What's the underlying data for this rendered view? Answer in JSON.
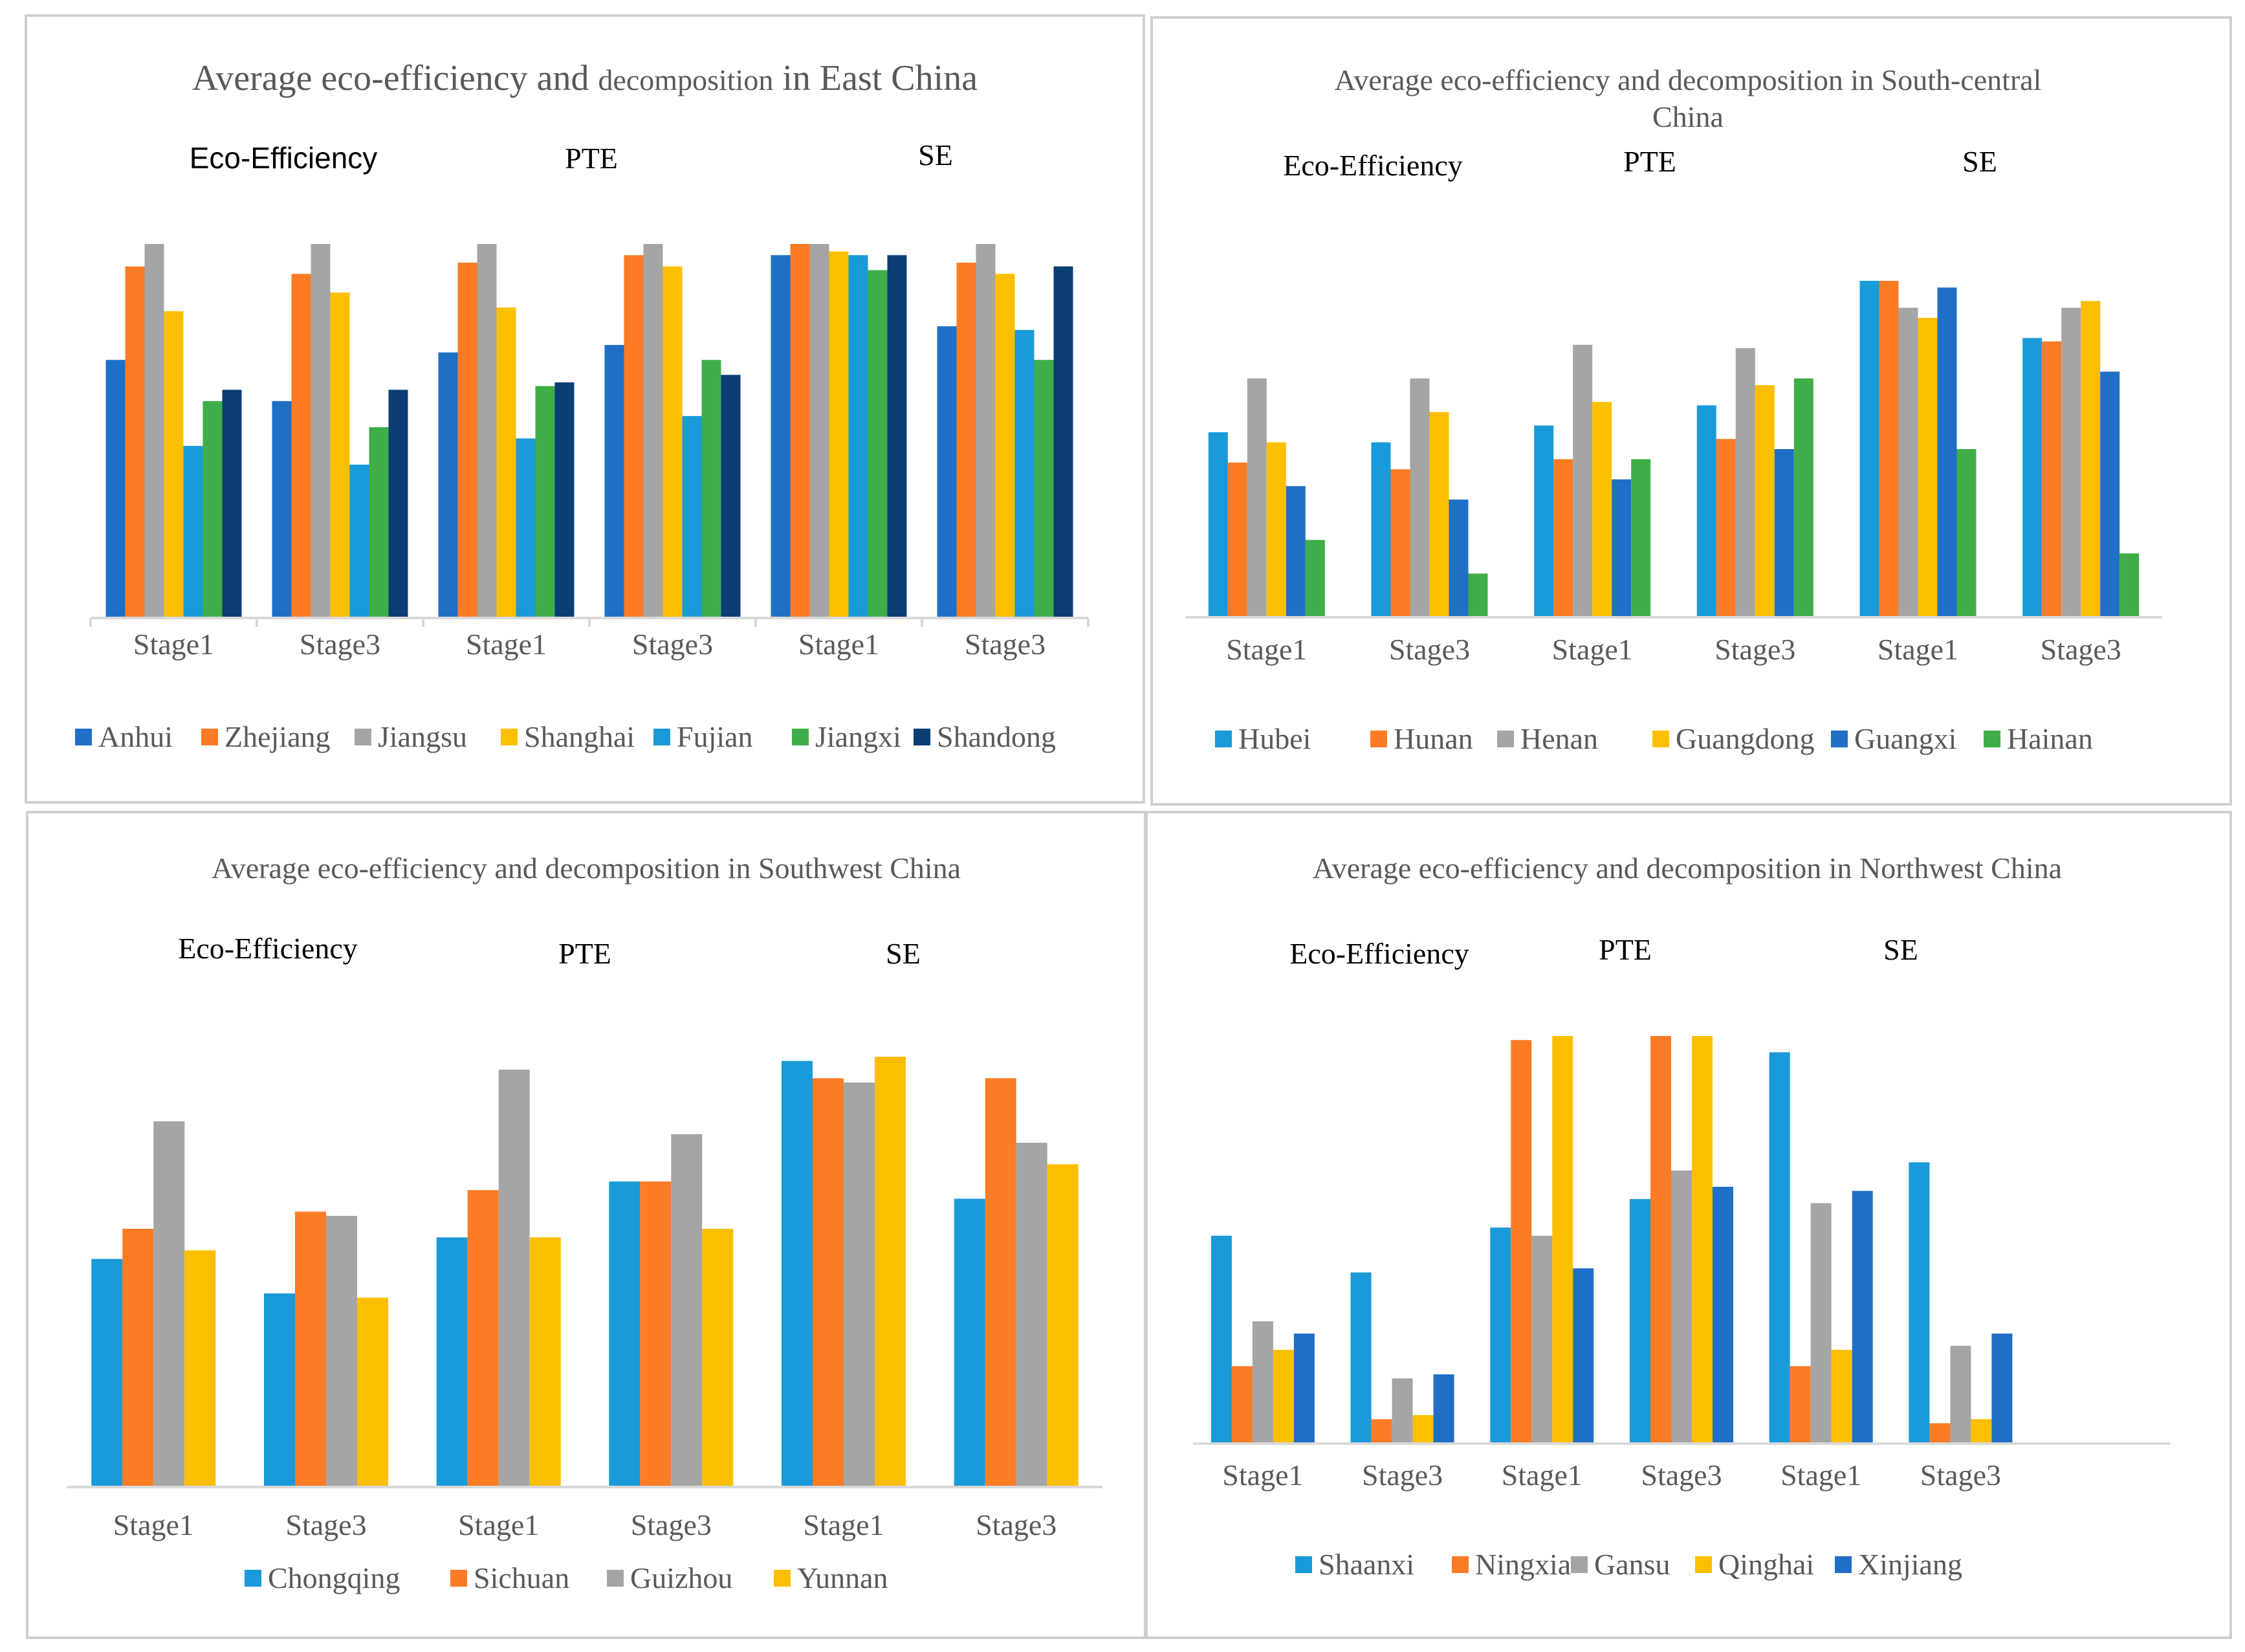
{
  "colors": {
    "blue": "#1f6fc6",
    "orange": "#fb7c25",
    "gray": "#a5a5a5",
    "yellow": "#fcbf00",
    "lightblue": "#1a9ad8",
    "green": "#3fae49",
    "navy": "#0b3d75",
    "axis": "#d9d9d9"
  },
  "chart_data": [
    {
      "type": "bar",
      "title_main": "Average eco-efficiency and",
      "title_small": "decomposition",
      "title_tail": "in East China",
      "sections": [
        "Eco-Efficiency",
        "PTE",
        "SE"
      ],
      "categories": [
        "Stage1",
        "Stage3",
        "Stage1",
        "Stage3",
        "Stage1",
        "Stage3"
      ],
      "ylim": [
        0,
        1
      ],
      "series": [
        {
          "name": "Anhui",
          "color": "#1f6fc6",
          "values": [
            0.69,
            0.58,
            0.71,
            0.73,
            0.97,
            0.78
          ]
        },
        {
          "name": "Zhejiang",
          "color": "#fb7c25",
          "values": [
            0.94,
            0.92,
            0.95,
            0.97,
            1.0,
            0.95
          ]
        },
        {
          "name": "Jiangsu",
          "color": "#a5a5a5",
          "values": [
            1.0,
            1.0,
            1.0,
            1.0,
            1.0,
            1.0
          ]
        },
        {
          "name": "Shanghai",
          "color": "#fcbf00",
          "values": [
            0.82,
            0.87,
            0.83,
            0.94,
            0.98,
            0.92
          ]
        },
        {
          "name": "Fujian",
          "color": "#1a9ad8",
          "values": [
            0.46,
            0.41,
            0.48,
            0.54,
            0.97,
            0.77
          ]
        },
        {
          "name": "Jiangxi",
          "color": "#3fae49",
          "values": [
            0.58,
            0.51,
            0.62,
            0.69,
            0.93,
            0.69
          ]
        },
        {
          "name": "Shandong",
          "color": "#0b3d75",
          "values": [
            0.61,
            0.61,
            0.63,
            0.65,
            0.97,
            0.94
          ]
        }
      ]
    },
    {
      "type": "bar",
      "title_line1": "Average eco-efficiency and decomposition  in South-central",
      "title_line2": "China",
      "sections": [
        "Eco-Efficiency",
        "PTE",
        "SE"
      ],
      "categories": [
        "Stage1",
        "Stage3",
        "Stage1",
        "Stage3",
        "Stage1",
        "Stage3"
      ],
      "ylim": [
        0,
        1
      ],
      "series": [
        {
          "name": "Hubei",
          "color": "#1a9ad8",
          "values": [
            0.55,
            0.52,
            0.57,
            0.63,
            1.0,
            0.83
          ]
        },
        {
          "name": "Hunan",
          "color": "#fb7c25",
          "values": [
            0.46,
            0.44,
            0.47,
            0.53,
            1.0,
            0.82
          ]
        },
        {
          "name": "Henan",
          "color": "#a5a5a5",
          "values": [
            0.71,
            0.71,
            0.81,
            0.8,
            0.92,
            0.92
          ]
        },
        {
          "name": "Guangdong",
          "color": "#fcbf00",
          "values": [
            0.52,
            0.61,
            0.64,
            0.69,
            0.89,
            0.94
          ]
        },
        {
          "name": "Guangxi",
          "color": "#1f6fc6",
          "values": [
            0.39,
            0.35,
            0.41,
            0.5,
            0.98,
            0.73
          ]
        },
        {
          "name": "Hainan",
          "color": "#3fae49",
          "values": [
            0.23,
            0.13,
            0.47,
            0.71,
            0.5,
            0.19
          ]
        }
      ]
    },
    {
      "type": "bar",
      "title": "Average eco-efficiency and decomposition  in Southwest China",
      "sections": [
        "Eco-Efficiency",
        "PTE",
        "SE"
      ],
      "categories": [
        "Stage1",
        "Stage3",
        "Stage1",
        "Stage3",
        "Stage1",
        "Stage3"
      ],
      "ylim": [
        0,
        1
      ],
      "series": [
        {
          "name": "Chongqing",
          "color": "#1a9ad8",
          "values": [
            0.53,
            0.45,
            0.58,
            0.71,
            0.99,
            0.67
          ]
        },
        {
          "name": "Sichuan",
          "color": "#fb7c25",
          "values": [
            0.6,
            0.64,
            0.69,
            0.71,
            0.95,
            0.95
          ]
        },
        {
          "name": "Guizhou",
          "color": "#a5a5a5",
          "values": [
            0.85,
            0.63,
            0.97,
            0.82,
            0.94,
            0.8
          ]
        },
        {
          "name": "Yunnan",
          "color": "#fcbf00",
          "values": [
            0.55,
            0.44,
            0.58,
            0.6,
            1.0,
            0.75
          ]
        }
      ]
    },
    {
      "type": "bar",
      "title": "Average eco-efficiency and decomposition  in Northwest China",
      "sections": [
        "Eco-Efficiency",
        "PTE",
        "SE"
      ],
      "categories": [
        "Stage1",
        "Stage3",
        "Stage1",
        "Stage3",
        "Stage1",
        "Stage3"
      ],
      "ylim": [
        0,
        1
      ],
      "series": [
        {
          "name": "Shaanxi",
          "color": "#1a9ad8",
          "values": [
            0.51,
            0.42,
            0.53,
            0.6,
            0.96,
            0.69
          ]
        },
        {
          "name": "Ningxia",
          "color": "#fb7c25",
          "values": [
            0.19,
            0.06,
            0.99,
            1.0,
            0.19,
            0.05
          ]
        },
        {
          "name": "Gansu",
          "color": "#a5a5a5",
          "values": [
            0.3,
            0.16,
            0.51,
            0.67,
            0.59,
            0.24
          ]
        },
        {
          "name": "Qinghai",
          "color": "#fcbf00",
          "values": [
            0.23,
            0.07,
            1.0,
            1.0,
            0.23,
            0.06
          ]
        },
        {
          "name": "Xinjiang",
          "color": "#1f6fc6",
          "values": [
            0.27,
            0.17,
            0.43,
            0.63,
            0.62,
            0.27
          ]
        }
      ]
    }
  ]
}
